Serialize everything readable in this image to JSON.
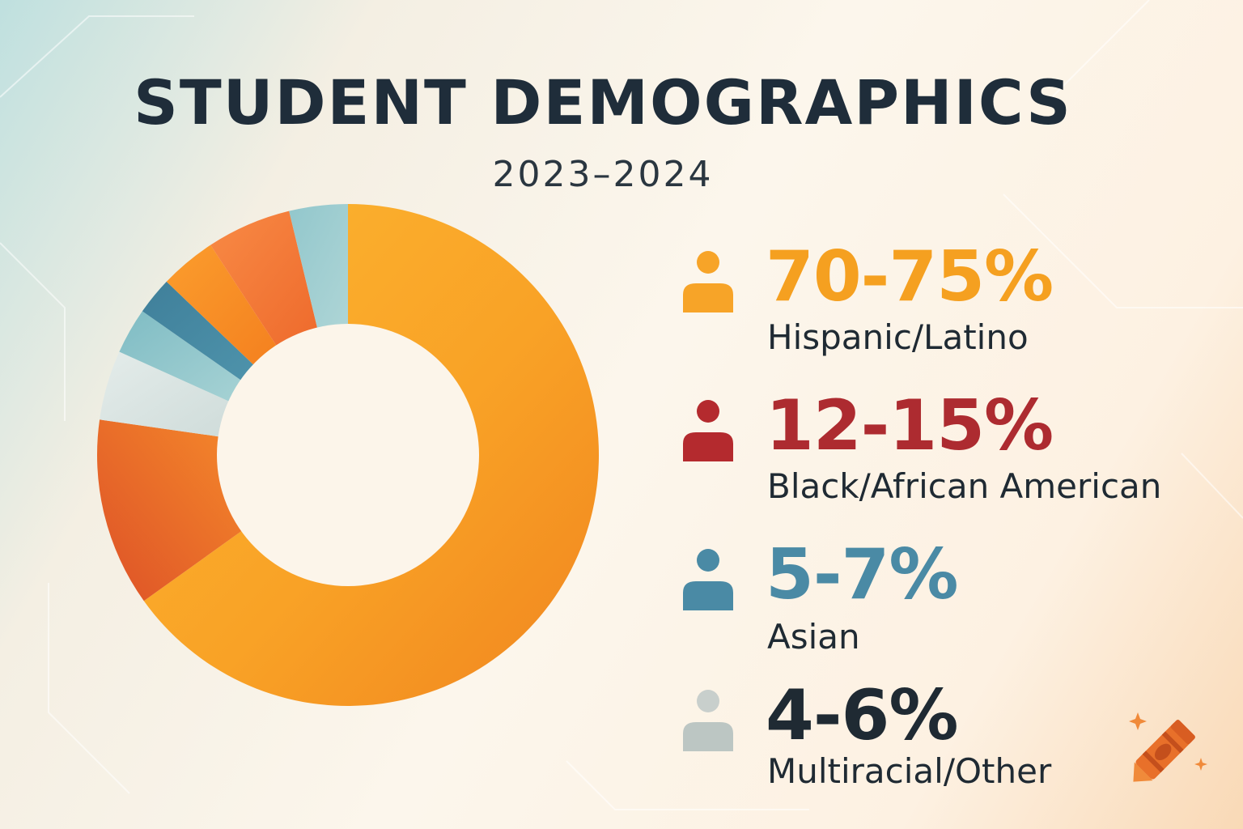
{
  "title": "STUDENT DEMOGRAPHICS",
  "subtitle": "2023–2024",
  "chart_data": {
    "type": "pie",
    "style": "donut",
    "title": "STUDENT DEMOGRAPHICS",
    "subtitle": "2023–2024",
    "slices": [
      {
        "label": "Hispanic/Latino",
        "display": "70-75%",
        "value": 72.5,
        "color": "#f7a428"
      },
      {
        "label": "Black/African American",
        "display": "12-15%",
        "value": 13.5,
        "color": "#e8612c"
      },
      {
        "label": "Asian",
        "display": "5-7%",
        "value": 6,
        "color": "#4d8ea6"
      },
      {
        "label": "Multiracial/Other",
        "display": "4-6%",
        "value": 5,
        "color": "#c5ccc9"
      }
    ],
    "legend_position": "right"
  },
  "legend": [
    {
      "value": "70-75%",
      "label": "Hispanic/Latino",
      "color": "#f5a020",
      "icon": "person-icon"
    },
    {
      "value": "12-15%",
      "label": "Black/African American",
      "color": "#ad2b30",
      "icon": "person-icon"
    },
    {
      "value": "5-7%",
      "label": "Asian",
      "color": "#4a8aa5",
      "icon": "person-icon"
    },
    {
      "value": "4-6%",
      "label": "Multiracial/Other",
      "color": "#1f2a33",
      "icon": "person-icon"
    }
  ],
  "decoration": {
    "icon": "crayon-icon",
    "color": "#e8702a"
  }
}
